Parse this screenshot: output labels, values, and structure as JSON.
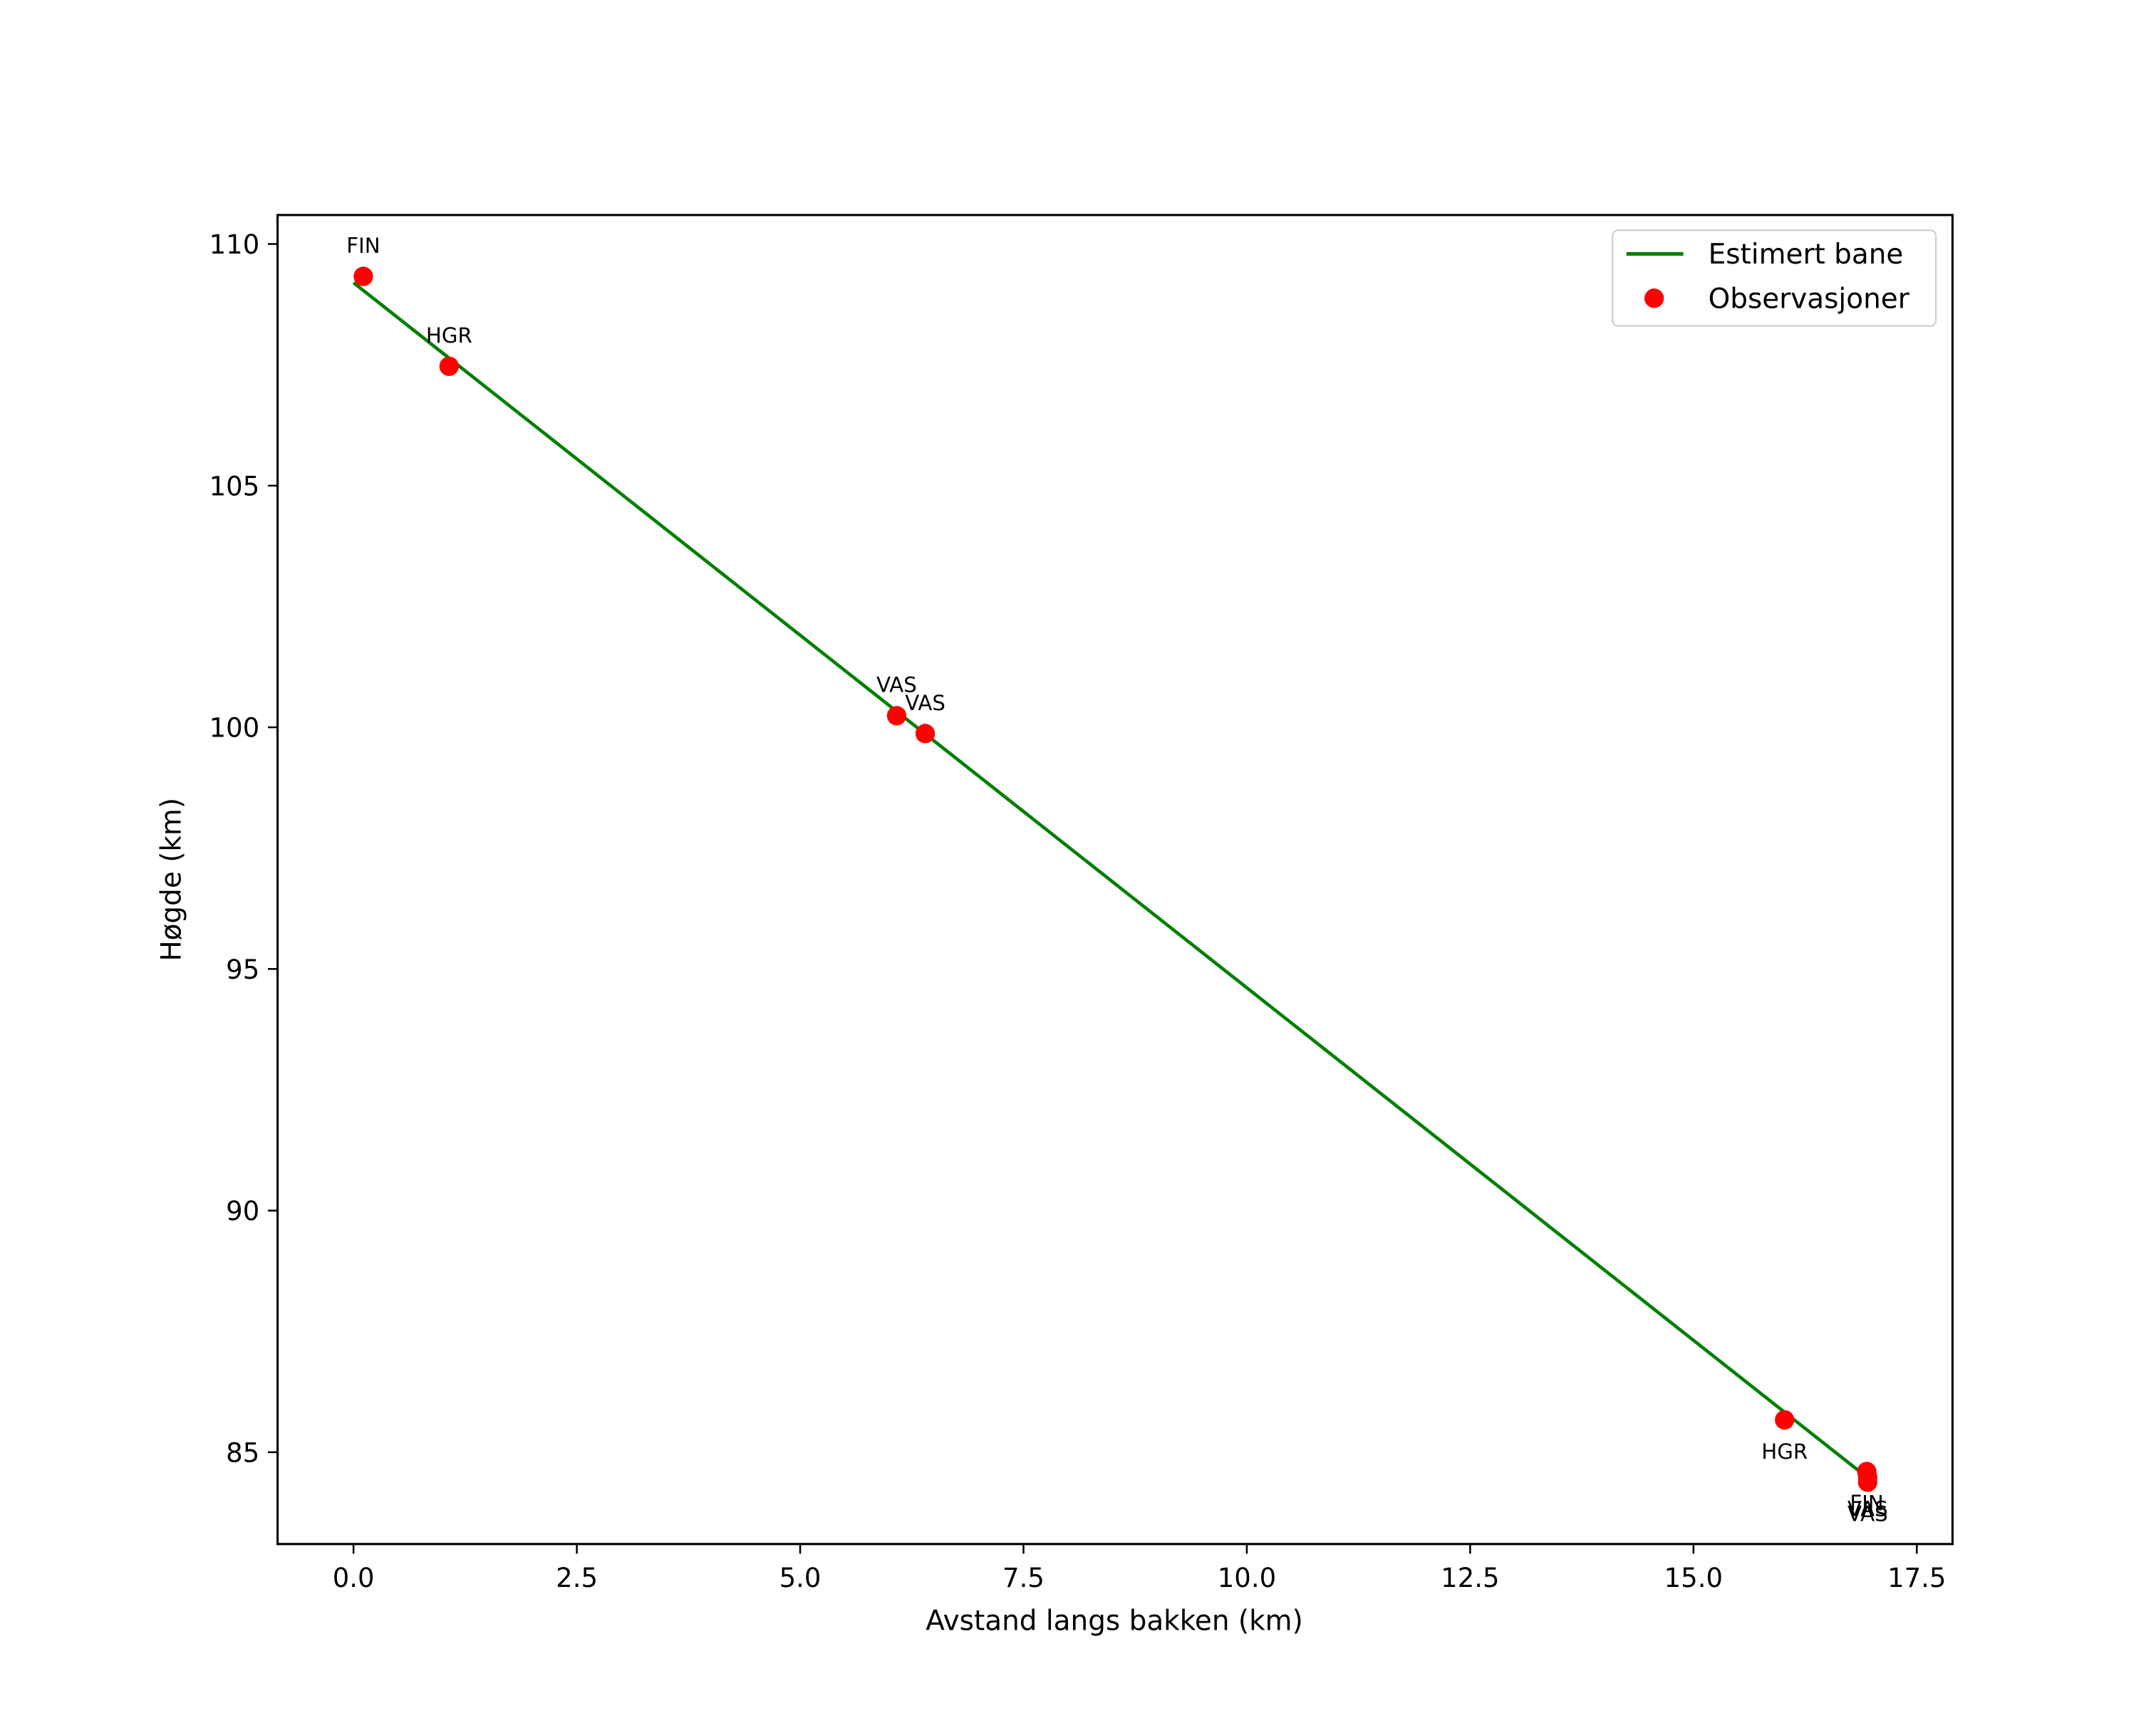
{
  "chart_data": {
    "type": "line",
    "title": "",
    "xlabel": "Avstand langs bakken (km)",
    "ylabel": "Høgde (km)",
    "xlim": [
      -0.85,
      17.9
    ],
    "ylim": [
      83.1,
      110.6
    ],
    "xticks": [
      0.0,
      2.5,
      5.0,
      7.5,
      10.0,
      12.5,
      15.0,
      17.5
    ],
    "xtick_labels": [
      "0.0",
      "2.5",
      "5.0",
      "7.5",
      "10.0",
      "12.5",
      "15.0",
      "17.5"
    ],
    "yticks": [
      85,
      90,
      95,
      100,
      105,
      110
    ],
    "ytick_labels": [
      "85",
      "90",
      "95",
      "100",
      "105",
      "110"
    ],
    "grid": false,
    "legend_position": "upper right",
    "series": [
      {
        "name": "Estimert bane",
        "type": "line",
        "color": "#008000",
        "x": [
          0.0,
          16.93
        ],
        "y": [
          109.2,
          84.5
        ]
      },
      {
        "name": "Observasjoner",
        "type": "scatter",
        "color": "#ff0000",
        "points": [
          {
            "x": 0.11,
            "y": 109.33,
            "label": "FIN",
            "label_pos": "above"
          },
          {
            "x": 1.07,
            "y": 107.47,
            "label": "HGR",
            "label_pos": "above"
          },
          {
            "x": 6.08,
            "y": 100.24,
            "label": "VAS",
            "label_pos": "above"
          },
          {
            "x": 6.4,
            "y": 99.87,
            "label": "VAS",
            "label_pos": "above"
          },
          {
            "x": 16.02,
            "y": 85.67,
            "label": "HGR",
            "label_pos": "below"
          },
          {
            "x": 16.94,
            "y": 84.6,
            "label": "FIN",
            "label_pos": "below"
          },
          {
            "x": 16.95,
            "y": 84.48,
            "label": "VAS",
            "label_pos": "below"
          },
          {
            "x": 16.95,
            "y": 84.38,
            "label": "VAS",
            "label_pos": "below"
          }
        ]
      }
    ]
  },
  "legend": {
    "items": [
      {
        "label": "Estimert bane",
        "symbol": "line",
        "color": "#008000"
      },
      {
        "label": "Observasjoner",
        "symbol": "dot",
        "color": "#ff0000"
      }
    ]
  }
}
